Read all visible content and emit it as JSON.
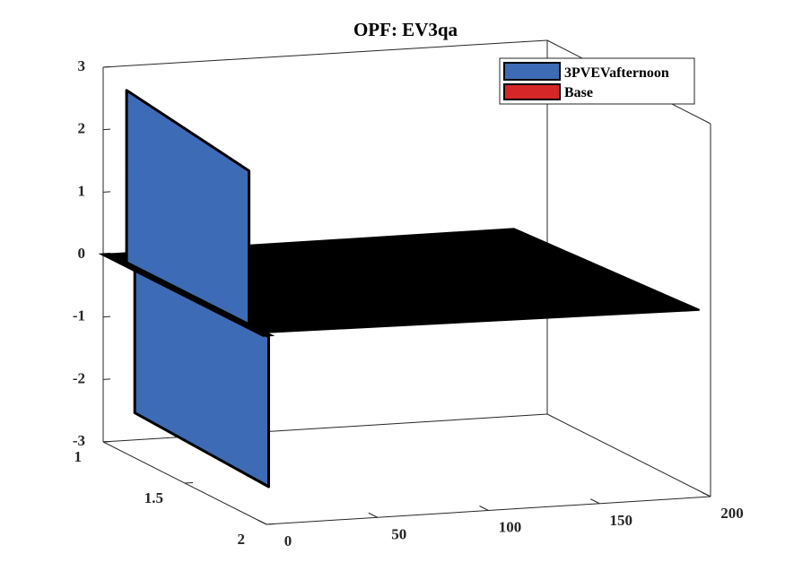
{
  "chart_data": {
    "type": "bar3d",
    "title": "OPF: EV3qa",
    "xlabel": "",
    "ylabel": "",
    "zlabel": "",
    "x_ticks": [
      0,
      50,
      100,
      150,
      200
    ],
    "y_ticks": [
      1,
      1.5,
      2
    ],
    "z_ticks": [
      3,
      2,
      1,
      0,
      -1,
      -2,
      -3
    ],
    "xlim": [
      0,
      200
    ],
    "ylim": [
      1,
      2
    ],
    "zlim": [
      -3,
      3
    ],
    "legend_position": "top-right",
    "series": [
      {
        "name": "3PVEVafternoon",
        "color": "#3E6BB5",
        "points": [
          {
            "x": 0,
            "z": 2.8
          },
          {
            "x": 0,
            "z": -2.3
          },
          {
            "x": 6,
            "z": 1.1
          },
          {
            "x": 6,
            "z": -0.9
          }
        ]
      },
      {
        "name": "Base",
        "color": "#D62728",
        "points": []
      }
    ],
    "baseline_color": "#000000",
    "baseline_xrange": [
      0,
      185
    ]
  }
}
